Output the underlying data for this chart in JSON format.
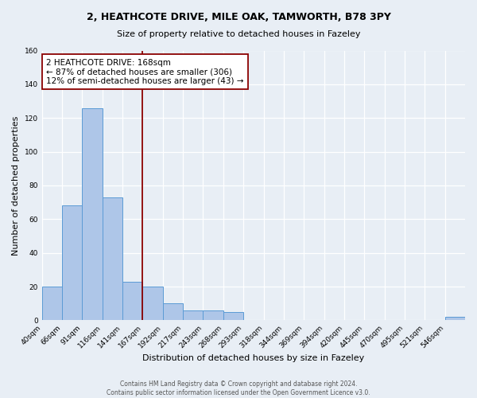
{
  "title": "2, HEATHCOTE DRIVE, MILE OAK, TAMWORTH, B78 3PY",
  "subtitle": "Size of property relative to detached houses in Fazeley",
  "xlabel": "Distribution of detached houses by size in Fazeley",
  "ylabel": "Number of detached properties",
  "bin_labels": [
    "40sqm",
    "66sqm",
    "91sqm",
    "116sqm",
    "141sqm",
    "167sqm",
    "192sqm",
    "217sqm",
    "243sqm",
    "268sqm",
    "293sqm",
    "318sqm",
    "344sqm",
    "369sqm",
    "394sqm",
    "420sqm",
    "445sqm",
    "470sqm",
    "495sqm",
    "521sqm",
    "546sqm"
  ],
  "bar_values": [
    20,
    68,
    126,
    73,
    23,
    20,
    10,
    6,
    6,
    5,
    0,
    0,
    0,
    0,
    0,
    0,
    0,
    0,
    0,
    0,
    2
  ],
  "bar_color": "#aec6e8",
  "bar_edge_color": "#5b9bd5",
  "marker_line_index": 5,
  "marker_line_color": "#8b0000",
  "ylim": [
    0,
    160
  ],
  "yticks": [
    0,
    20,
    40,
    60,
    80,
    100,
    120,
    140,
    160
  ],
  "annotation_title": "2 HEATHCOTE DRIVE: 168sqm",
  "annotation_line1": "← 87% of detached houses are smaller (306)",
  "annotation_line2": "12% of semi-detached houses are larger (43) →",
  "annotation_box_color": "#ffffff",
  "annotation_box_edge_color": "#8b0000",
  "background_color": "#e8eef5",
  "footer_line1": "Contains HM Land Registry data © Crown copyright and database right 2024.",
  "footer_line2": "Contains public sector information licensed under the Open Government Licence v3.0."
}
